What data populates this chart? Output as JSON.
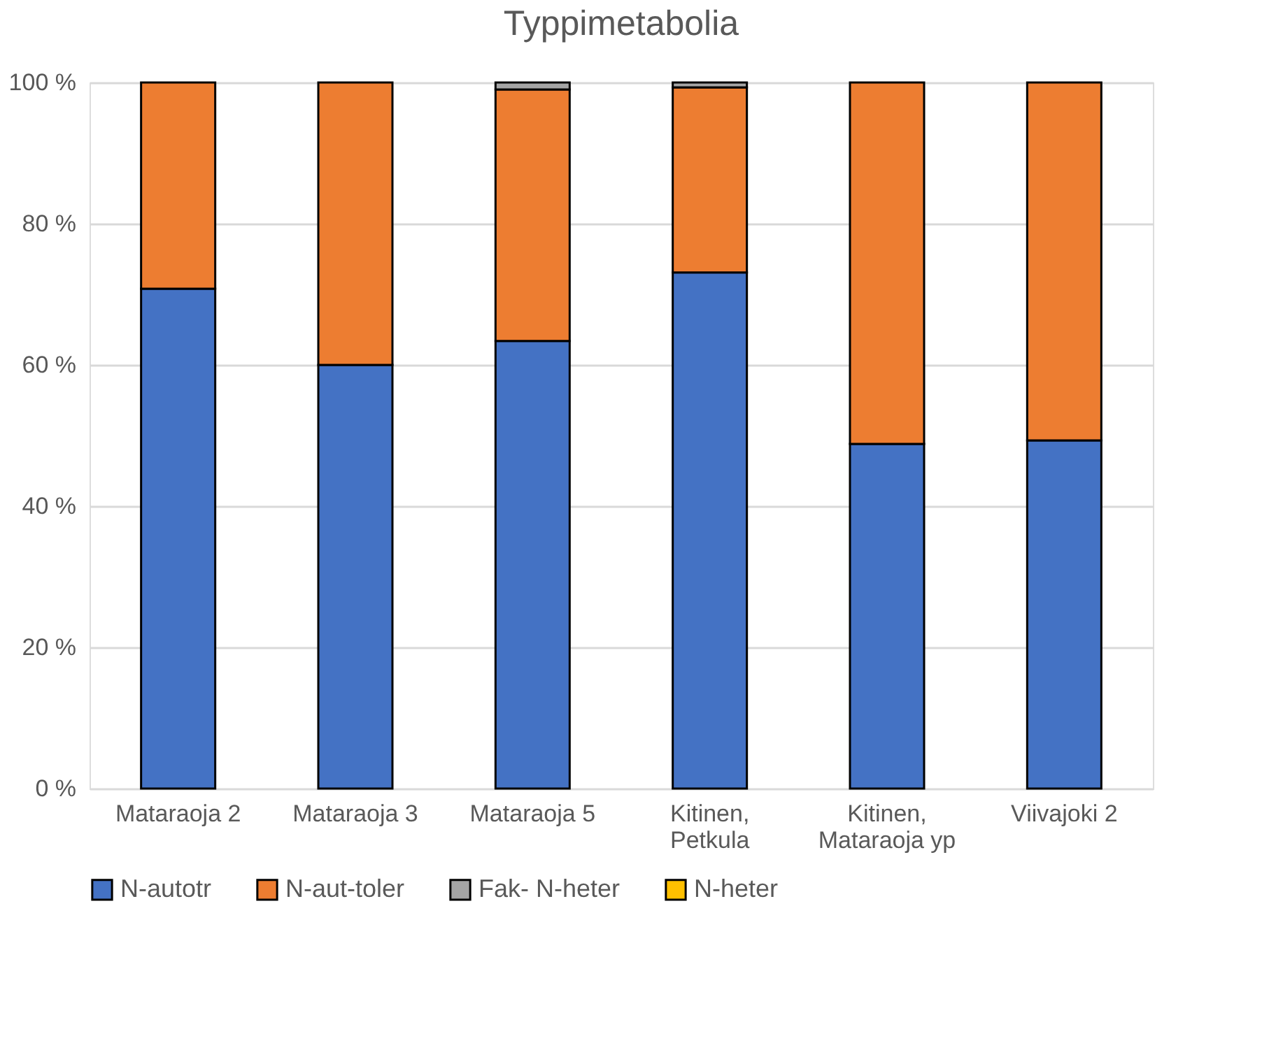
{
  "chart_data": {
    "type": "bar",
    "stacked": true,
    "title": "Typpimetabolia",
    "categories": [
      "Mataraoja 2",
      "Mataraoja 3",
      "Mataraoja 5",
      "Kitinen, Petkula",
      "Kitinen, Mataraoja yp",
      "Viivajoki 2"
    ],
    "series": [
      {
        "name": "N-autotr",
        "color": "#4472c4",
        "values": [
          70.8,
          60.0,
          63.4,
          73.1,
          48.8,
          49.3
        ]
      },
      {
        "name": "N-aut-toler",
        "color": "#ed7d31",
        "values": [
          29.2,
          40.0,
          35.6,
          26.2,
          51.2,
          50.7
        ]
      },
      {
        "name": "Fak- N-heter",
        "color": "#a5a5a5",
        "values": [
          null,
          null,
          1.0,
          0.7,
          null,
          null
        ]
      },
      {
        "name": "N-heter",
        "color": "#ffc000",
        "values": [
          null,
          null,
          null,
          null,
          null,
          null
        ]
      }
    ],
    "ylim": [
      0,
      100
    ],
    "yticks": [
      {
        "value": 0,
        "label": "0 %"
      },
      {
        "value": 20,
        "label": "20 %"
      },
      {
        "value": 40,
        "label": "40 %"
      },
      {
        "value": 60,
        "label": "60 %"
      },
      {
        "value": 80,
        "label": "80 %"
      },
      {
        "value": 100,
        "label": "100 %"
      }
    ],
    "grid": "y",
    "legend": "bottom"
  }
}
